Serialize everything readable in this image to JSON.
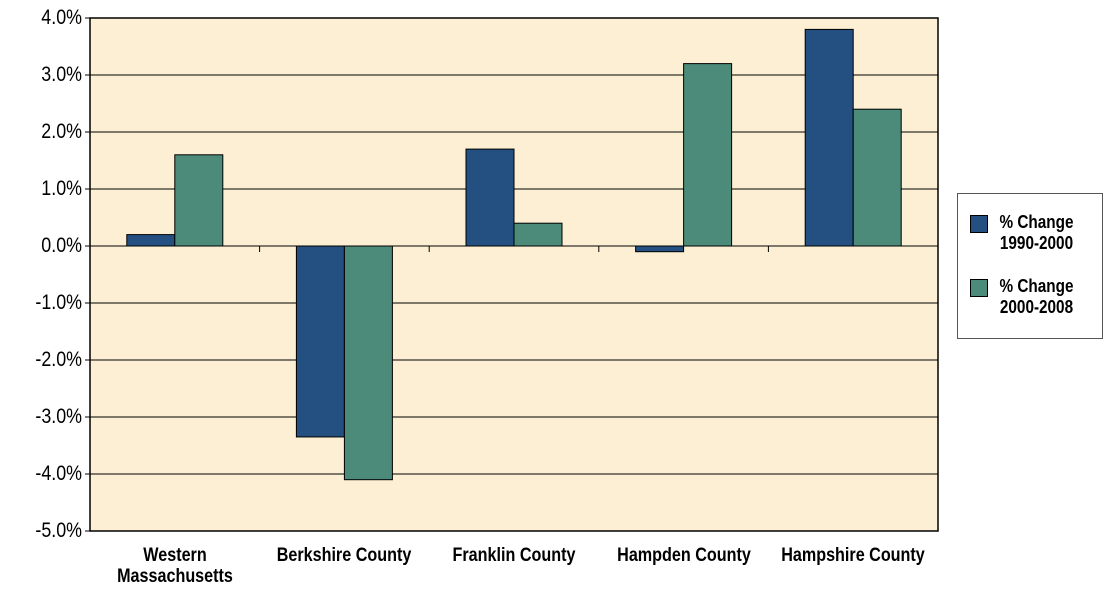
{
  "chart_data": {
    "type": "bar",
    "categories": [
      "Western Massachusetts",
      "Berkshire County",
      "Franklin County",
      "Hampden County",
      "Hampshire County"
    ],
    "series": [
      {
        "name": "% Change 1990-2000",
        "color": "#234f81",
        "values": [
          0.2,
          -3.35,
          1.7,
          -0.1,
          3.8
        ]
      },
      {
        "name": "% Change 2000-2008",
        "color": "#4c8a79",
        "values": [
          1.6,
          -4.1,
          0.4,
          3.2,
          2.4
        ]
      }
    ],
    "ylim": [
      -5,
      4
    ],
    "yticks": [
      {
        "value": -5,
        "label": "-5.0%"
      },
      {
        "value": -4,
        "label": "-4.0%"
      },
      {
        "value": -3,
        "label": "-3.0%"
      },
      {
        "value": -2,
        "label": "-2.0%"
      },
      {
        "value": -1,
        "label": "-1.0%"
      },
      {
        "value": 0,
        "label": "0.0%"
      },
      {
        "value": 1,
        "label": "1.0%"
      },
      {
        "value": 2,
        "label": "2.0%"
      },
      {
        "value": 3,
        "label": "3.0%"
      },
      {
        "value": 4,
        "label": "4.0%"
      }
    ],
    "grid": true,
    "legend": "right",
    "background": "#fcefd3"
  }
}
